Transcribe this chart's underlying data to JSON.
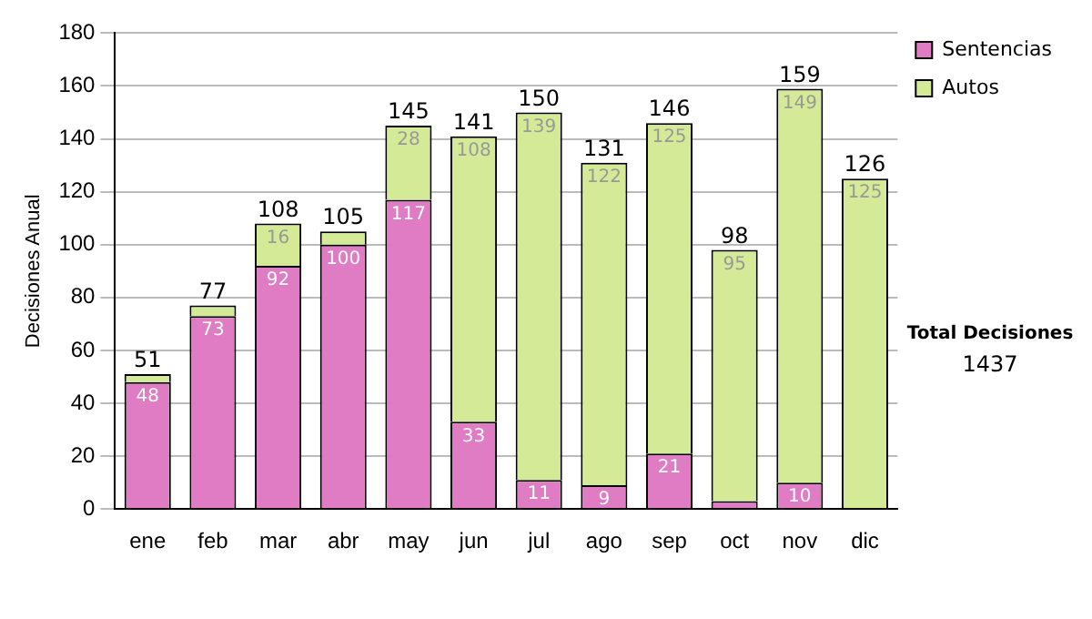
{
  "chart_data": {
    "type": "bar",
    "stacked": true,
    "ylabel": "Decisiones Anual",
    "categories": [
      "ene",
      "feb",
      "mar",
      "abr",
      "may",
      "jun",
      "jul",
      "ago",
      "sep",
      "oct",
      "nov",
      "dic"
    ],
    "series": [
      {
        "name": "Sentencias",
        "color": "#e07cc4",
        "values": [
          48,
          73,
          92,
          100,
          117,
          33,
          11,
          9,
          21,
          3,
          10,
          null
        ],
        "value_labels": [
          "48",
          "73",
          "92",
          "100",
          "117",
          "33",
          "11",
          "9",
          "21",
          null,
          "10",
          null
        ]
      },
      {
        "name": "Autos",
        "color": "#d4ea96",
        "values": [
          3,
          4,
          16,
          5,
          28,
          108,
          139,
          122,
          125,
          95,
          149,
          125
        ],
        "value_labels": [
          null,
          null,
          "16",
          null,
          "28",
          "108",
          "139",
          "122",
          "125",
          "95",
          "149",
          "125"
        ]
      }
    ],
    "totals": [
      "51",
      "77",
      "108",
      "105",
      "145",
      "141",
      "150",
      "131",
      "146",
      "98",
      "159",
      "126"
    ],
    "ylim": [
      0,
      180
    ],
    "yticks": [
      0,
      20,
      40,
      60,
      80,
      100,
      120,
      140,
      160,
      180
    ],
    "grid": "y",
    "legend": "right",
    "annotations": [
      "Total Decisiones",
      "1437"
    ]
  }
}
